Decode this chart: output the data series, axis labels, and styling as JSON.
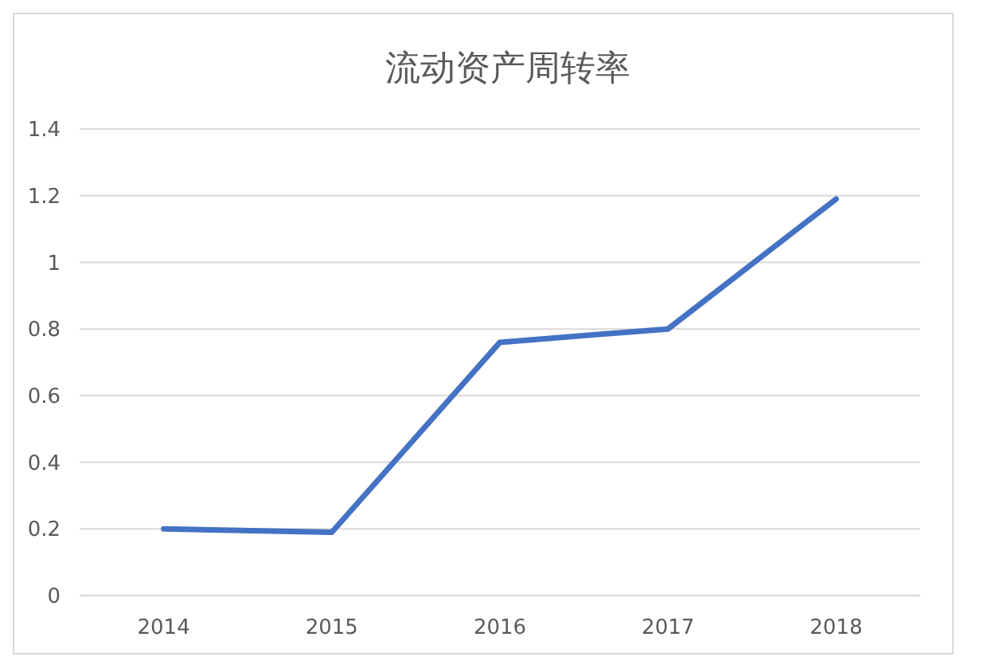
{
  "chart_data": {
    "type": "line",
    "title": "流动资产周转率",
    "categories": [
      "2014",
      "2015",
      "2016",
      "2017",
      "2018"
    ],
    "series": [
      {
        "color": "#4472c4",
        "values": [
          0.2,
          0.19,
          0.76,
          0.8,
          1.19
        ]
      }
    ],
    "ylim": [
      0,
      1.4
    ],
    "yticks": [
      0,
      0.2,
      0.4,
      0.6,
      0.8,
      1,
      1.2,
      1.4
    ],
    "grid": "y",
    "marker": "none",
    "line_style": "solid"
  }
}
